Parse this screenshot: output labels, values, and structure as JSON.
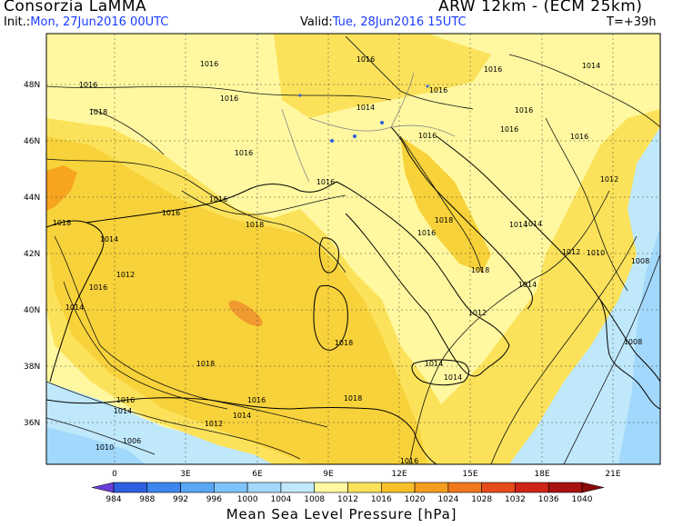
{
  "header": {
    "title_left": "Consorzia LaMMA",
    "init_label": "Init.:",
    "init_value": "Mon, 27Jun2016 00UTC",
    "title_right": "ARW 12km - (ECM 25km)",
    "valid_label": "Valid:",
    "valid_value": "Tue, 28Jun2016 15UTC",
    "forecast_hour": "T=+39h"
  },
  "axes": {
    "lat_labels": [
      "48N",
      "46N",
      "44N",
      "42N",
      "40N",
      "38N",
      "36N"
    ],
    "lon_labels": [
      "0",
      "3E",
      "6E",
      "9E",
      "12E",
      "15E",
      "18E",
      "21E"
    ]
  },
  "isobar_labels": [
    "1016",
    "1016",
    "1016",
    "1016",
    "1014",
    "1016",
    "1016",
    "1018",
    "1016",
    "1014",
    "1016",
    "1016",
    "1016",
    "1016",
    "1016",
    "1016",
    "1012",
    "1018",
    "1016",
    "1014",
    "1018",
    "1016",
    "1018",
    "1014",
    "1012",
    "1014",
    "1016",
    "1014",
    "1012",
    "1010",
    "1012",
    "1008",
    "1014",
    "1014",
    "1018",
    "1018",
    "1008",
    "1014",
    "1016",
    "1016",
    "1018",
    "1014",
    "1016",
    "1014",
    "1012",
    "1006",
    "1010",
    "1018"
  ],
  "colorbar": {
    "ticks": [
      "984",
      "988",
      "992",
      "996",
      "1000",
      "1004",
      "1008",
      "1012",
      "1016",
      "1020",
      "1024",
      "1028",
      "1032",
      "1036",
      "1040"
    ],
    "colors": [
      "#6b3fd9",
      "#2f5fe0",
      "#3c86ee",
      "#58a6f5",
      "#7ec3fa",
      "#a2d8fb",
      "#bfe8fb",
      "#fff8a0",
      "#fbe25a",
      "#f7c02a",
      "#f59d1f",
      "#f0781c",
      "#e64b1b",
      "#cf2417",
      "#a81210",
      "#8a0a0a"
    ],
    "title": "Mean Sea Level Pressure [hPa]"
  }
}
